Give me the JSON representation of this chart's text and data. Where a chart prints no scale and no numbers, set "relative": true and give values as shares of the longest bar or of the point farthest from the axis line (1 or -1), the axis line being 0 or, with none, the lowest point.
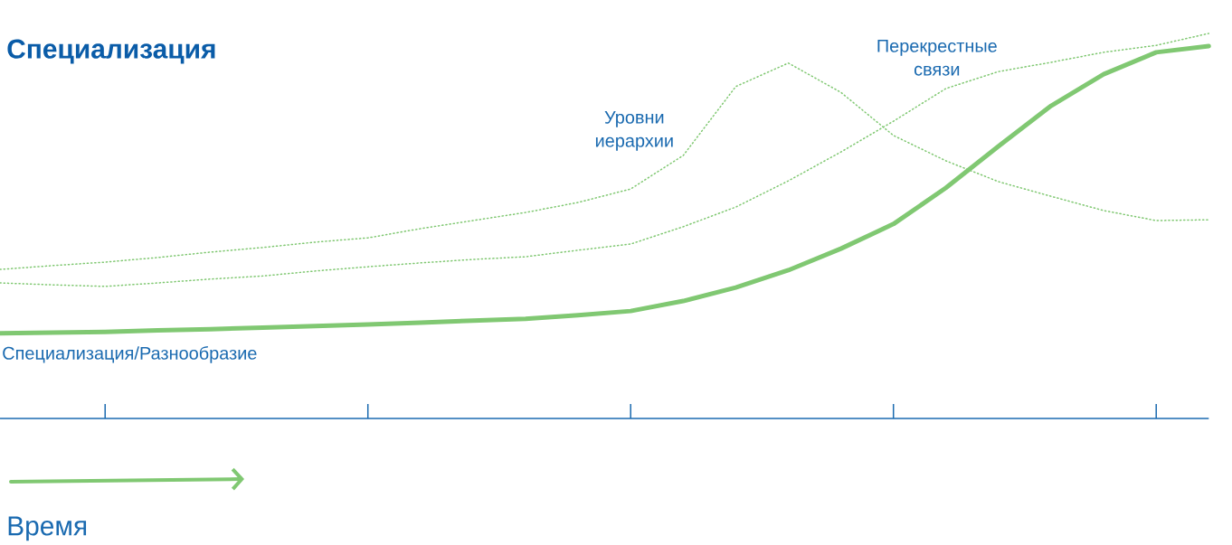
{
  "chart_data": {
    "type": "line",
    "title": "Специализация",
    "xlabel": "Время",
    "relative": true,
    "marker": "none",
    "categories": [
      null,
      null,
      null,
      null,
      null,
      null,
      null,
      null,
      null,
      null,
      null,
      null,
      null,
      null,
      null,
      null,
      null,
      null,
      null,
      null,
      null,
      null,
      null,
      null
    ],
    "series": [
      {
        "name": "Специализация/Разнообразие",
        "color": "#80c872",
        "line_style": "solid",
        "values": [
          0.221,
          0.223,
          0.225,
          0.229,
          0.232,
          0.236,
          0.24,
          0.244,
          0.249,
          0.254,
          0.259,
          0.268,
          0.279,
          0.305,
          0.34,
          0.385,
          0.441,
          0.505,
          0.599,
          0.707,
          0.812,
          0.894,
          0.951,
          0.967
        ]
      },
      {
        "name": "Уровни иерархии",
        "color": "#80c872",
        "line_style": "dotted",
        "values": [
          0.387,
          0.397,
          0.406,
          0.418,
          0.432,
          0.444,
          0.458,
          0.469,
          0.493,
          0.514,
          0.535,
          0.561,
          0.596,
          0.683,
          0.862,
          0.923,
          0.847,
          0.735,
          0.669,
          0.615,
          0.577,
          0.54,
          0.514,
          0.516
        ]
      },
      {
        "name": "Перекрестные связи",
        "color": "#80c872",
        "line_style": "dotted",
        "values": [
          0.352,
          0.347,
          0.343,
          0.352,
          0.362,
          0.37,
          0.383,
          0.394,
          0.404,
          0.413,
          0.42,
          0.437,
          0.453,
          0.498,
          0.549,
          0.617,
          0.692,
          0.772,
          0.857,
          0.901,
          0.925,
          0.951,
          0.969,
          1
        ]
      }
    ]
  }
}
